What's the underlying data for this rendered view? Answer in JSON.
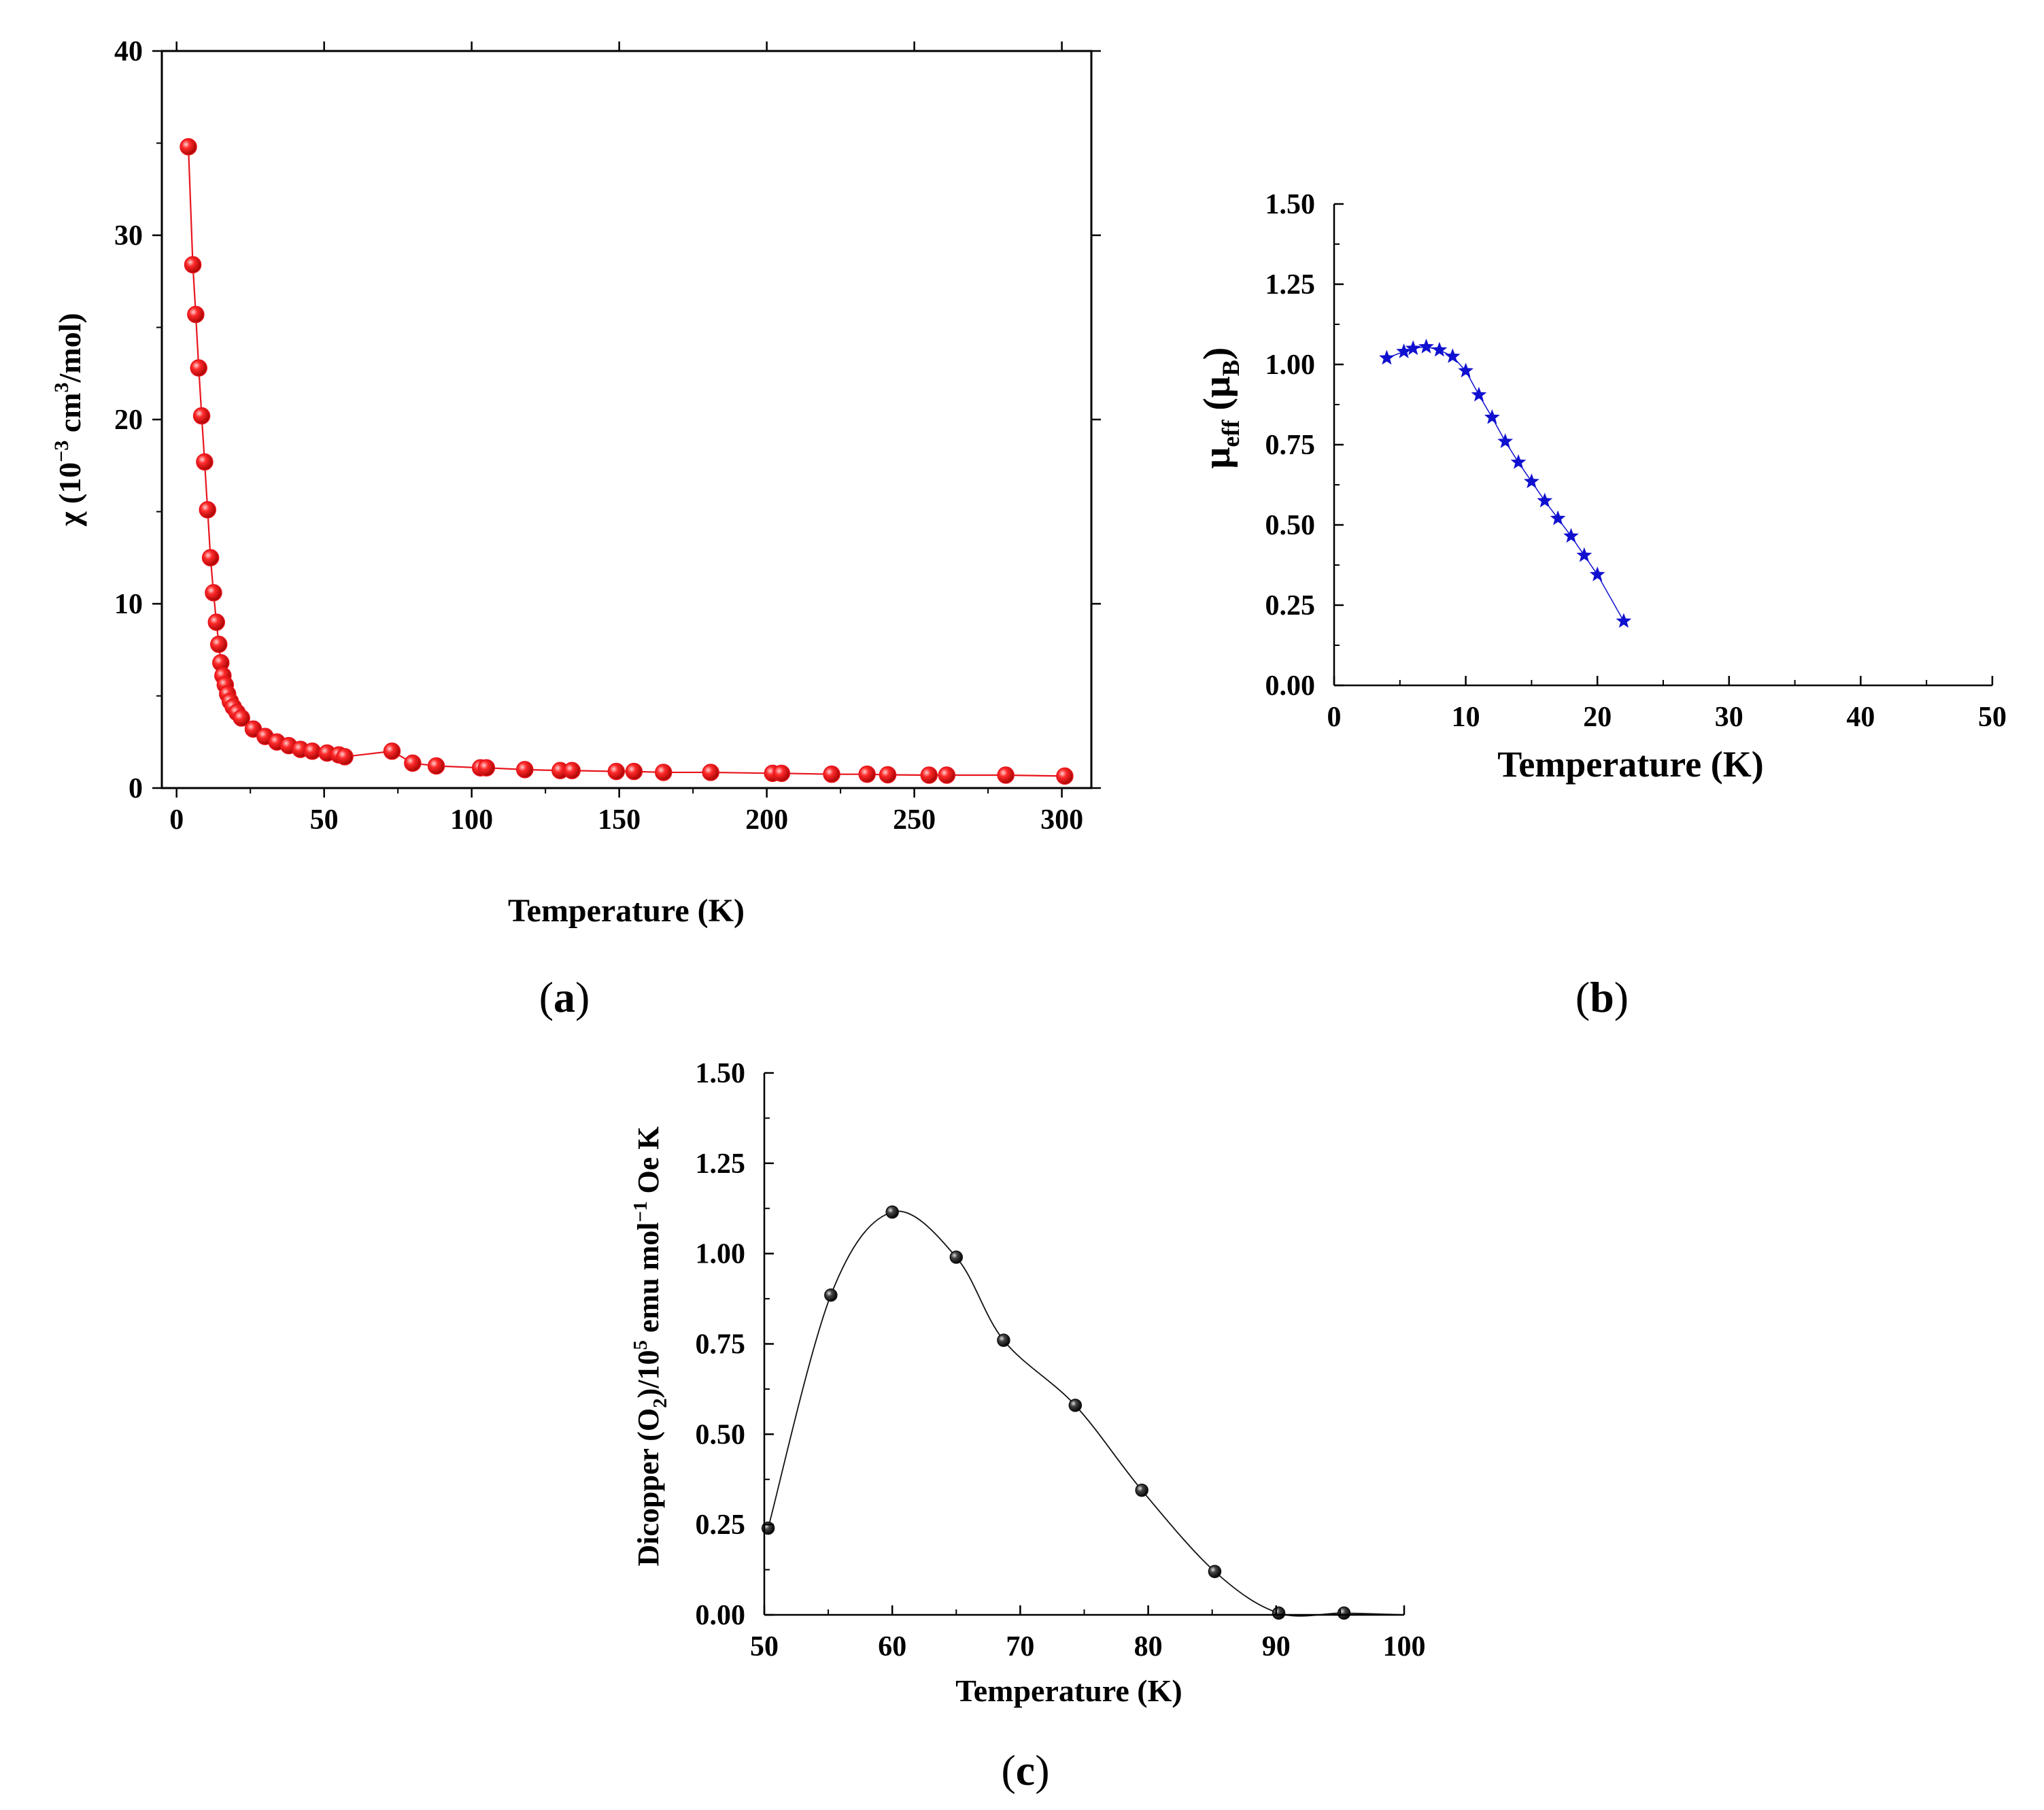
{
  "chart_data": [
    {
      "panel": "(a)",
      "panel_letter": "a",
      "type": "scatter",
      "xlabel": "Temperature (K)",
      "ylabel": {
        "prefix": "χ (10",
        "exp1": "−3",
        "mid": " cm",
        "exp2": "3",
        "suffix": "/mol)"
      },
      "xlim": [
        -5,
        310
      ],
      "ylim": [
        0,
        40
      ],
      "xticks": [
        "0",
        "50",
        "100",
        "150",
        "200",
        "250",
        "300"
      ],
      "yticks": [
        "0",
        "10",
        "20",
        "30",
        "40"
      ],
      "marker": "sphere",
      "color": "#e8141c",
      "series": [
        {
          "name": "chi",
          "x": [
            4,
            5.5,
            6.5,
            7.5,
            8.5,
            9.5,
            10.5,
            11.5,
            12.5,
            13.5,
            14.3,
            15,
            15.7,
            16.5,
            17.3,
            18.2,
            19.2,
            20.5,
            22,
            26,
            30,
            34,
            38,
            42,
            46,
            51,
            55,
            57,
            73,
            80,
            88,
            103,
            105,
            118,
            130,
            134,
            149,
            155,
            165,
            181,
            202,
            205,
            222,
            234,
            241,
            255,
            261,
            281,
            301
          ],
          "y": [
            34.8,
            28.4,
            25.7,
            22.8,
            20.2,
            17.7,
            15.1,
            12.5,
            10.6,
            9.0,
            7.8,
            6.8,
            6.1,
            5.6,
            5.1,
            4.7,
            4.4,
            4.1,
            3.8,
            3.2,
            2.8,
            2.5,
            2.3,
            2.1,
            2.0,
            1.9,
            1.8,
            1.7,
            2.0,
            1.35,
            1.2,
            1.1,
            1.1,
            1.0,
            0.95,
            0.95,
            0.9,
            0.9,
            0.85,
            0.85,
            0.8,
            0.8,
            0.75,
            0.75,
            0.72,
            0.7,
            0.7,
            0.7,
            0.65
          ]
        }
      ]
    },
    {
      "panel": "(b)",
      "panel_letter": "b",
      "type": "line",
      "xlabel": "Temperature (K)",
      "ylabel": {
        "mu": "μ",
        "sub1": "eff",
        "mid": " (μ",
        "sub2": "B",
        "suffix": ")"
      },
      "xlim": [
        0,
        50
      ],
      "ylim": [
        0,
        1.5
      ],
      "xticks": [
        "0",
        "10",
        "20",
        "30",
        "40",
        "50"
      ],
      "yticks": [
        "0.00",
        "0.25",
        "0.50",
        "0.75",
        "1.00",
        "1.25",
        "1.50"
      ],
      "marker": "star",
      "color": "#1010d0",
      "series": [
        {
          "name": "mu_eff",
          "x": [
            4,
            5.3,
            6,
            7,
            8,
            9,
            10,
            11,
            12,
            13,
            14,
            15,
            16,
            17,
            18,
            19,
            20,
            22
          ],
          "y": [
            1.02,
            1.04,
            1.05,
            1.055,
            1.045,
            1.025,
            0.98,
            0.905,
            0.835,
            0.76,
            0.695,
            0.635,
            0.575,
            0.52,
            0.465,
            0.405,
            0.345,
            0.2
          ]
        }
      ]
    },
    {
      "panel": "(c)",
      "panel_letter": "c",
      "type": "line",
      "xlabel": "Temperature (K)",
      "ylabel": {
        "prefix": "Dicopper (O",
        "sub1": "2",
        "mid": ")/10",
        "exp1": "5",
        "mid2": " emu mol",
        "exp2": "−1",
        "suffix": " Oe K"
      },
      "xlim": [
        50,
        100
      ],
      "ylim": [
        0,
        1.5
      ],
      "xticks": [
        "50",
        "60",
        "70",
        "80",
        "90",
        "100"
      ],
      "yticks": [
        "0.00",
        "0.25",
        "0.50",
        "0.75",
        "1.00",
        "1.25",
        "1.50"
      ],
      "marker": "sphere",
      "color": "#111111",
      "series": [
        {
          "name": "dicopper",
          "x": [
            50.3,
            55.2,
            60,
            65,
            68.7,
            74.3,
            79.5,
            85.2,
            90.2,
            95.3
          ],
          "y": [
            0.24,
            0.885,
            1.115,
            0.99,
            0.76,
            0.58,
            0.345,
            0.12,
            0.005,
            0.005
          ]
        }
      ]
    }
  ]
}
